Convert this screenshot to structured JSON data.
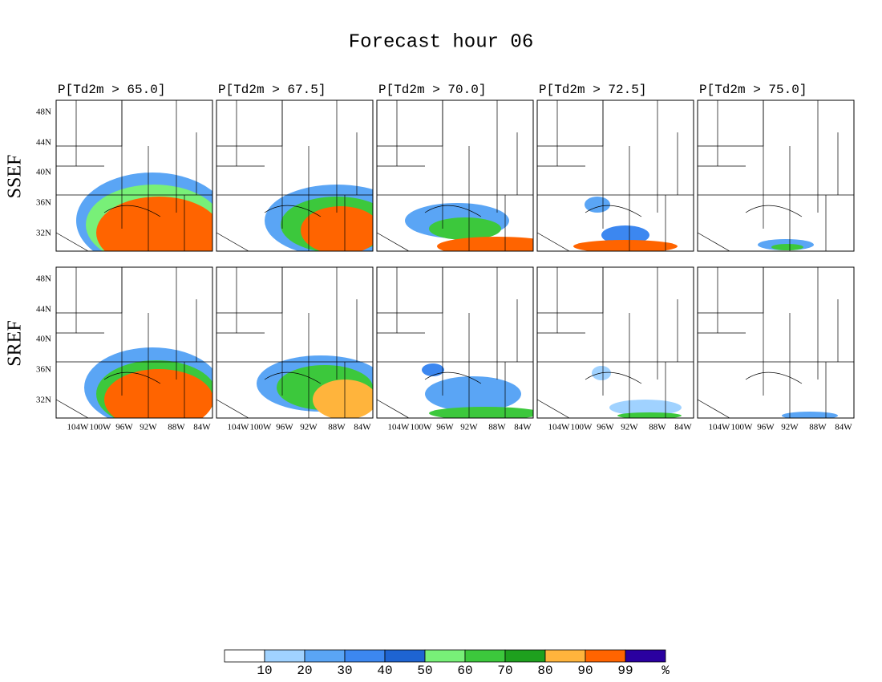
{
  "title": "Forecast hour 06",
  "columns": [
    "P[Td2m > 65.0]",
    "P[Td2m > 67.5]",
    "P[Td2m > 70.0]",
    "P[Td2m > 72.5]",
    "P[Td2m > 75.0]"
  ],
  "rows": [
    "SSEF",
    "SREF"
  ],
  "lat_labels": [
    "48N",
    "44N",
    "40N",
    "36N",
    "32N"
  ],
  "lon_labels": [
    "104W",
    "100W",
    "96W",
    "92W",
    "88W",
    "84W"
  ],
  "colorbar": {
    "colors": [
      "#ffffff",
      "#a0d2ff",
      "#5aa5f5",
      "#3c87f0",
      "#1e64d2",
      "#78f078",
      "#3cc83c",
      "#1ea01e",
      "#ffb43c",
      "#ff6400",
      "#2a00a0"
    ],
    "labels": [
      "10",
      "20",
      "30",
      "40",
      "50",
      "60",
      "70",
      "80",
      "90",
      "99",
      "%"
    ]
  }
}
